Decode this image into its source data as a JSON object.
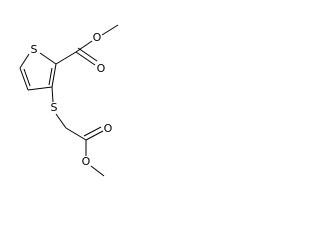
{
  "atoms": [
    {
      "label": "S"
    },
    {
      "label": "O"
    },
    {
      "label": "O"
    },
    {
      "label": "S"
    },
    {
      "label": "O"
    },
    {
      "label": "O"
    }
  ]
}
